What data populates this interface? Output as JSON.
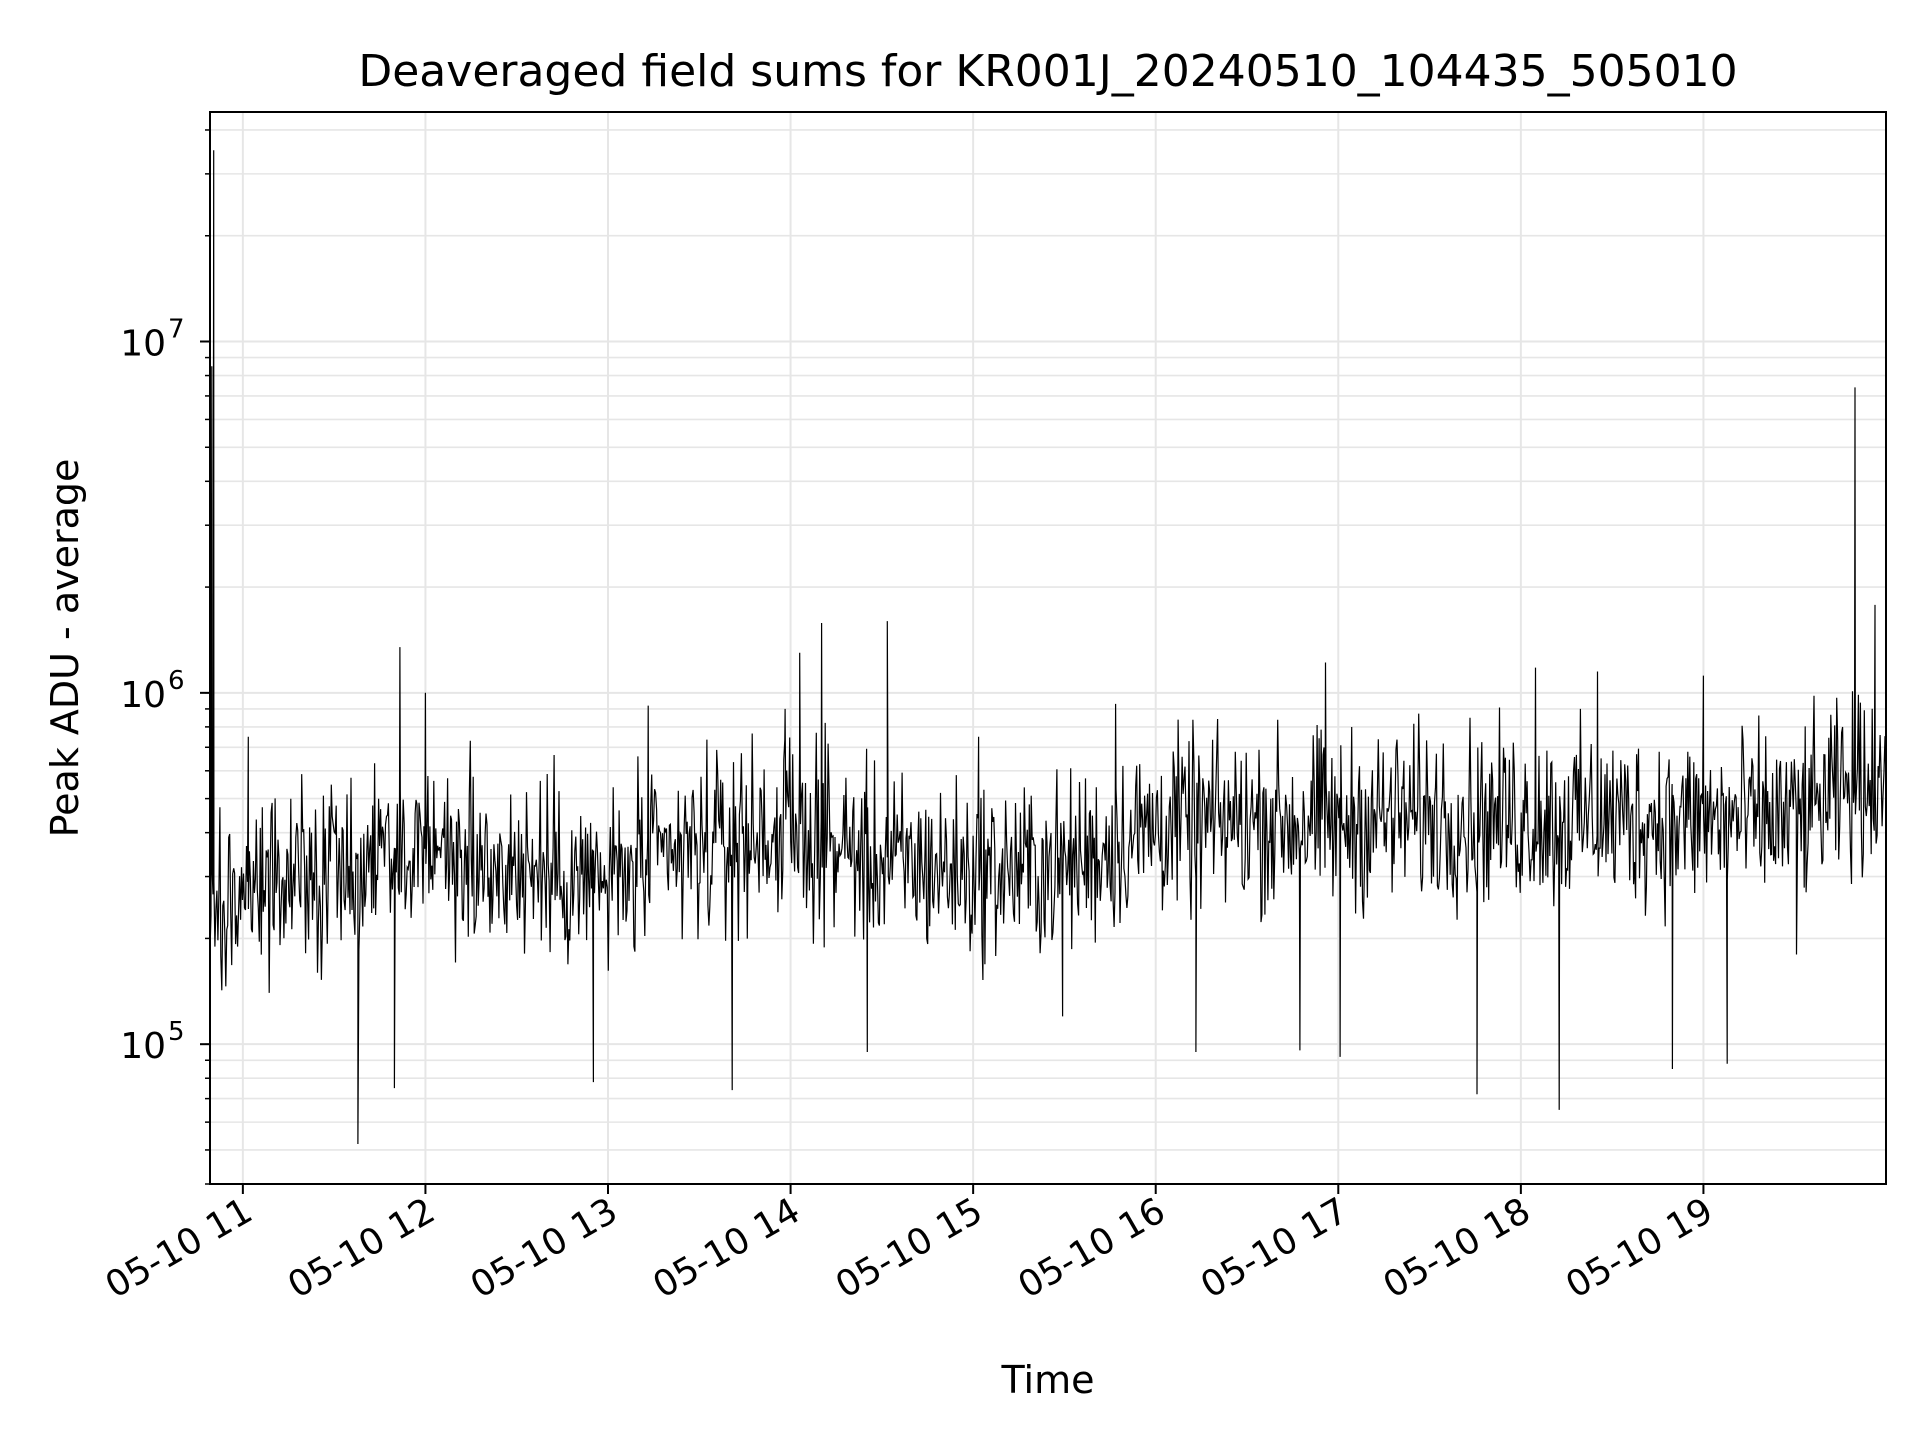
{
  "chart_data": {
    "type": "line",
    "title": "Deaveraged field sums for KR001J_20240510_104435_505010",
    "xlabel": "Time",
    "ylabel": "Peak ADU - average",
    "yscale": "log",
    "ylim": [
      40000,
      45000000
    ],
    "xlim_hours": [
      10.82,
      20.0
    ],
    "grid": true,
    "line_color": "#000000",
    "x_tick_labels": [
      "05-10 11",
      "05-10 12",
      "05-10 13",
      "05-10 14",
      "05-10 15",
      "05-10 16",
      "05-10 17",
      "05-10 18",
      "05-10 19"
    ],
    "x_tick_hours": [
      11,
      12,
      13,
      14,
      15,
      16,
      17,
      18,
      19
    ],
    "y_ticks": [
      {
        "value": 100000,
        "base": "10",
        "exp": "5"
      },
      {
        "value": 1000000,
        "base": "10",
        "exp": "6"
      },
      {
        "value": 10000000,
        "base": "10",
        "exp": "7"
      }
    ],
    "series": [
      {
        "name": "Peak ADU - average",
        "baseline_points": [
          {
            "hour": 10.82,
            "value": 250000
          },
          {
            "hour": 11.0,
            "value": 270000
          },
          {
            "hour": 11.5,
            "value": 320000
          },
          {
            "hour": 12.0,
            "value": 360000
          },
          {
            "hour": 12.5,
            "value": 320000
          },
          {
            "hour": 13.0,
            "value": 290000
          },
          {
            "hour": 13.5,
            "value": 360000
          },
          {
            "hour": 14.0,
            "value": 410000
          },
          {
            "hour": 14.5,
            "value": 330000
          },
          {
            "hour": 15.0,
            "value": 310000
          },
          {
            "hour": 15.5,
            "value": 320000
          },
          {
            "hour": 16.0,
            "value": 420000
          },
          {
            "hour": 16.5,
            "value": 430000
          },
          {
            "hour": 17.0,
            "value": 430000
          },
          {
            "hour": 17.5,
            "value": 450000
          },
          {
            "hour": 18.0,
            "value": 440000
          },
          {
            "hour": 18.5,
            "value": 440000
          },
          {
            "hour": 19.0,
            "value": 430000
          },
          {
            "hour": 19.5,
            "value": 440000
          },
          {
            "hour": 20.0,
            "value": 600000
          }
        ],
        "spikes": [
          {
            "hour": 10.84,
            "value": 35000000
          },
          {
            "hour": 10.83,
            "value": 8500000
          },
          {
            "hour": 11.03,
            "value": 750000
          },
          {
            "hour": 11.63,
            "value": 52000
          },
          {
            "hour": 11.86,
            "value": 1350000
          },
          {
            "hour": 11.83,
            "value": 75000
          },
          {
            "hour": 12.0,
            "value": 1000000
          },
          {
            "hour": 12.92,
            "value": 78000
          },
          {
            "hour": 13.22,
            "value": 920000
          },
          {
            "hour": 13.68,
            "value": 74000
          },
          {
            "hour": 13.97,
            "value": 900000
          },
          {
            "hour": 14.05,
            "value": 1300000
          },
          {
            "hour": 14.17,
            "value": 1580000
          },
          {
            "hour": 14.53,
            "value": 1600000
          },
          {
            "hour": 14.42,
            "value": 95000
          },
          {
            "hour": 15.03,
            "value": 750000
          },
          {
            "hour": 15.49,
            "value": 120000
          },
          {
            "hour": 15.78,
            "value": 930000
          },
          {
            "hour": 16.22,
            "value": 95000
          },
          {
            "hour": 16.79,
            "value": 96000
          },
          {
            "hour": 16.93,
            "value": 1220000
          },
          {
            "hour": 17.01,
            "value": 92000
          },
          {
            "hour": 17.76,
            "value": 72000
          },
          {
            "hour": 18.08,
            "value": 1180000
          },
          {
            "hour": 18.21,
            "value": 65000
          },
          {
            "hour": 18.42,
            "value": 1150000
          },
          {
            "hour": 18.83,
            "value": 85000
          },
          {
            "hour": 19.0,
            "value": 1120000
          },
          {
            "hour": 19.13,
            "value": 88000
          },
          {
            "hour": 19.51,
            "value": 180000
          },
          {
            "hour": 19.83,
            "value": 7400000
          },
          {
            "hour": 19.94,
            "value": 1780000
          }
        ]
      }
    ]
  }
}
